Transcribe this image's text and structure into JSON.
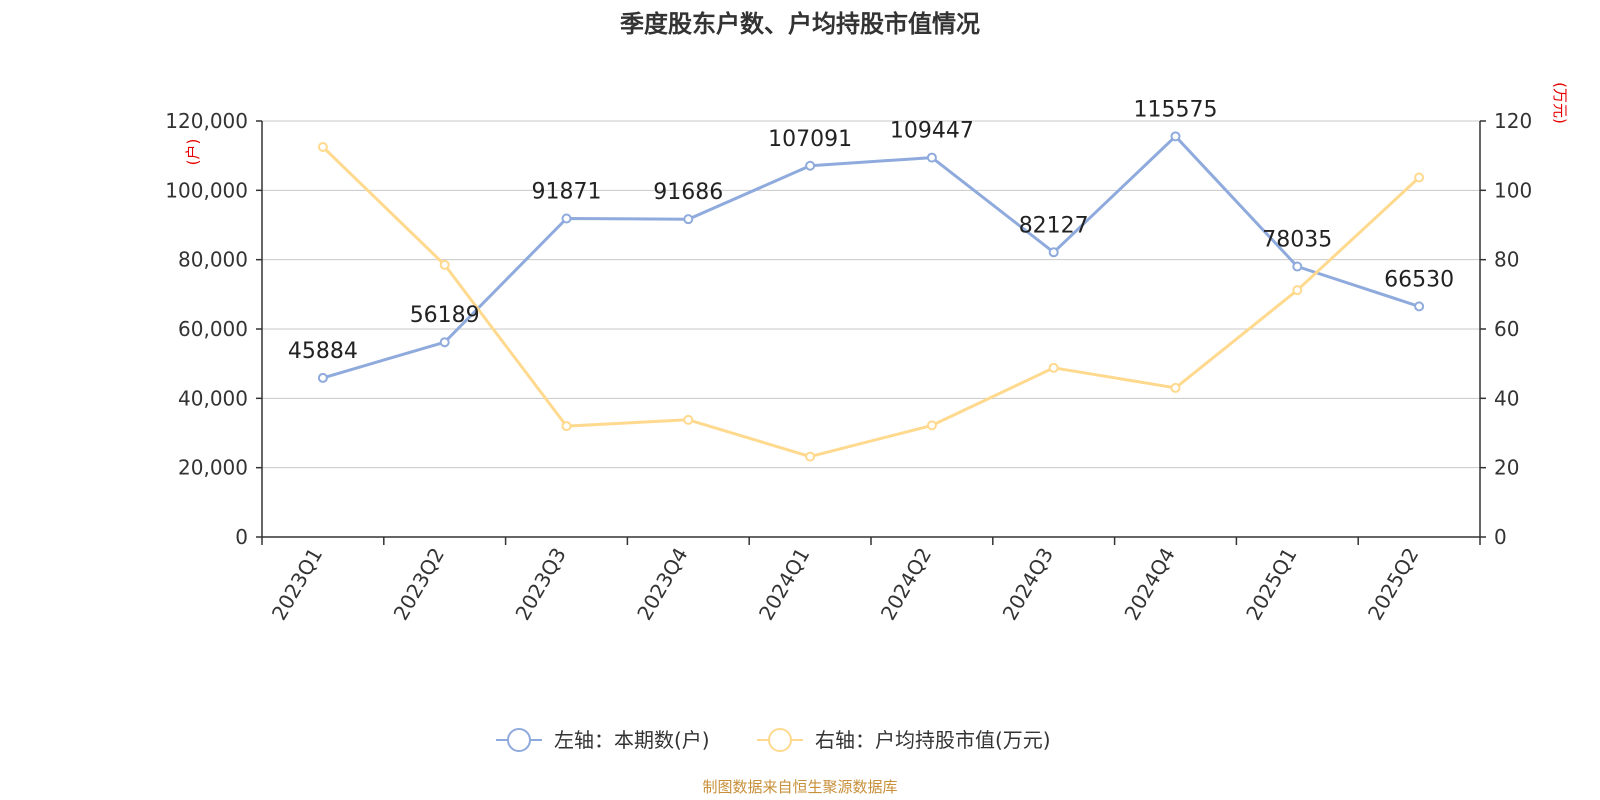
{
  "chart_data": {
    "type": "line",
    "title": "季度股东户数、户均持股市值情况",
    "categories": [
      "2023Q1",
      "2023Q2",
      "2023Q3",
      "2023Q4",
      "2024Q1",
      "2024Q2",
      "2024Q3",
      "2024Q4",
      "2025Q1",
      "2025Q2"
    ],
    "left_axis": {
      "unit_label": "(户)",
      "ylim": [
        0,
        120000
      ],
      "ticks": [
        0,
        20000,
        40000,
        60000,
        80000,
        100000,
        120000
      ],
      "tick_labels": [
        "0",
        "20,000",
        "40,000",
        "60,000",
        "80,000",
        "100,000",
        "120,000"
      ]
    },
    "right_axis": {
      "unit_label": "(万元)",
      "ylim": [
        0,
        120
      ],
      "ticks": [
        0,
        20,
        40,
        60,
        80,
        100,
        120
      ],
      "tick_labels": [
        "0",
        "20",
        "40",
        "60",
        "80",
        "100",
        "120"
      ]
    },
    "series": [
      {
        "name": "左轴：本期数(户)",
        "axis": "left",
        "color": "#8faadc",
        "values": [
          45884,
          56189,
          91871,
          91686,
          107091,
          109447,
          82127,
          115575,
          78035,
          66530
        ],
        "labels": [
          "45884",
          "56189",
          "91871",
          "91686",
          "107091",
          "109447",
          "82127",
          "115575",
          "78035",
          "66530"
        ]
      },
      {
        "name": "右轴：户均持股市值(万元)",
        "axis": "right",
        "color": "#ffd98e",
        "values": [
          112.5,
          78.5,
          32.0,
          33.8,
          23.2,
          32.2,
          48.8,
          43.0,
          71.2,
          103.7
        ]
      }
    ],
    "source": "制图数据来自恒生聚源数据库"
  }
}
